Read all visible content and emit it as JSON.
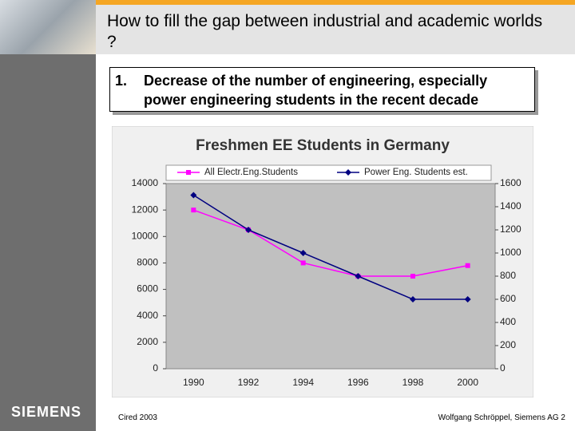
{
  "header": {
    "title": "How to fill the gap between industrial and academic worlds ?"
  },
  "point": {
    "number": "1.",
    "text": "Decrease of the number of engineering, especially power engineering students in the recent decade"
  },
  "logo": "SIEMENS",
  "footer": {
    "left": "Cired 2003",
    "right": "Wolfgang Schröppel, Siemens AG 2"
  },
  "chart_data": {
    "type": "line",
    "title": "Freshmen EE Students in Germany",
    "categories": [
      "1990",
      "1992",
      "1994",
      "1996",
      "1998",
      "2000"
    ],
    "series": [
      {
        "name": "All Electr.Eng.Students",
        "color": "#ff00ff",
        "marker": "square",
        "values": [
          12000,
          10500,
          8000,
          7000,
          7000,
          7800
        ]
      },
      {
        "name": "Power Eng. Students est.",
        "color": "#000080",
        "marker": "diamond",
        "axis": "y2",
        "values": [
          1500,
          1200,
          1000,
          800,
          600,
          600
        ]
      }
    ],
    "ylim": [
      0,
      14000
    ],
    "yticks": [
      0,
      2000,
      4000,
      6000,
      8000,
      10000,
      12000,
      14000
    ],
    "y2lim": [
      0,
      1600
    ],
    "y2ticks": [
      0,
      200,
      400,
      600,
      800,
      1000,
      1200,
      1400,
      1600
    ],
    "legend": "top",
    "grid": false
  }
}
